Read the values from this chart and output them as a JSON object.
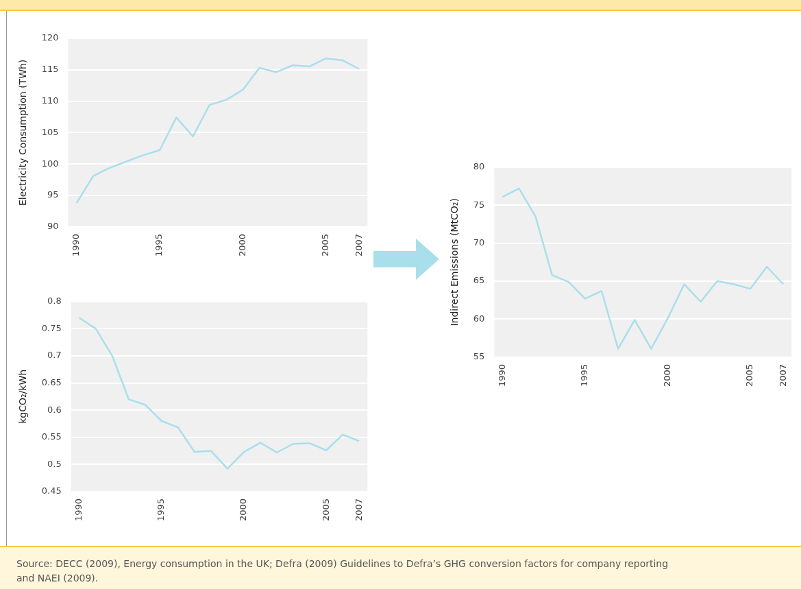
{
  "chart_data": [
    {
      "type": "line",
      "ylabel": "Electricity Consumption (TWh)",
      "x": [
        1990,
        1991,
        1992,
        1993,
        1994,
        1995,
        1996,
        1997,
        1998,
        1999,
        2000,
        2001,
        2002,
        2003,
        2004,
        2005,
        2006,
        2007
      ],
      "series": [
        {
          "color": "#a9dfeb",
          "values": [
            93.8,
            98.1,
            99.4,
            100.4,
            101.4,
            102.2,
            107.4,
            104.4,
            109.4,
            110.2,
            111.8,
            115.3,
            114.6,
            115.7,
            115.5,
            116.8,
            116.5,
            115.1
          ]
        }
      ],
      "xlim": [
        1989.5,
        2007.5
      ],
      "xticks": [
        1990,
        1995,
        2000,
        2005,
        2007
      ],
      "ylim": [
        90,
        120
      ],
      "yticks": [
        90,
        95,
        100,
        105,
        110,
        115,
        120
      ],
      "grid": "y"
    },
    {
      "type": "line",
      "ylabel": "kgCO₂/kWh",
      "x": [
        1990,
        1991,
        1992,
        1993,
        1994,
        1995,
        1996,
        1997,
        1998,
        1999,
        2000,
        2001,
        2002,
        2003,
        2004,
        2005,
        2006,
        2007
      ],
      "series": [
        {
          "color": "#a9dfeb",
          "values": [
            0.77,
            0.75,
            0.7,
            0.62,
            0.61,
            0.58,
            0.568,
            0.523,
            0.525,
            0.492,
            0.523,
            0.54,
            0.522,
            0.538,
            0.539,
            0.526,
            0.555,
            0.543
          ]
        }
      ],
      "xlim": [
        1989.5,
        2007.5
      ],
      "xticks": [
        1990,
        1995,
        2000,
        2005,
        2007
      ],
      "ylim": [
        0.45,
        0.8
      ],
      "yticks": [
        0.45,
        0.5,
        0.55,
        0.6,
        0.65,
        0.7,
        0.75,
        0.8
      ],
      "grid": "y"
    },
    {
      "type": "line",
      "ylabel": "Indirect Emissions (MtCO₂)",
      "x": [
        1990,
        1991,
        1992,
        1993,
        1994,
        1995,
        1996,
        1997,
        1998,
        1999,
        2000,
        2001,
        2002,
        2003,
        2004,
        2005,
        2006,
        2007
      ],
      "series": [
        {
          "color": "#a9dfeb",
          "values": [
            76.1,
            77.2,
            73.5,
            65.8,
            64.9,
            62.7,
            63.7,
            56.1,
            59.9,
            56.1,
            60.1,
            64.6,
            62.3,
            65.0,
            64.6,
            64.0,
            66.9,
            64.6
          ]
        }
      ],
      "xlim": [
        1989.5,
        2007.5
      ],
      "xticks": [
        1990,
        1995,
        2000,
        2005,
        2007
      ],
      "ylim": [
        55,
        80
      ],
      "yticks": [
        55,
        60,
        65,
        70,
        75,
        80
      ],
      "grid": "y",
      "annotations": [
        "Source: DECC (2009), Energy consumption in the UK; Defra (2009) Guidelines to Defra’s GHG conversion factors for company reporting and NAEI (2009)."
      ]
    }
  ]
}
